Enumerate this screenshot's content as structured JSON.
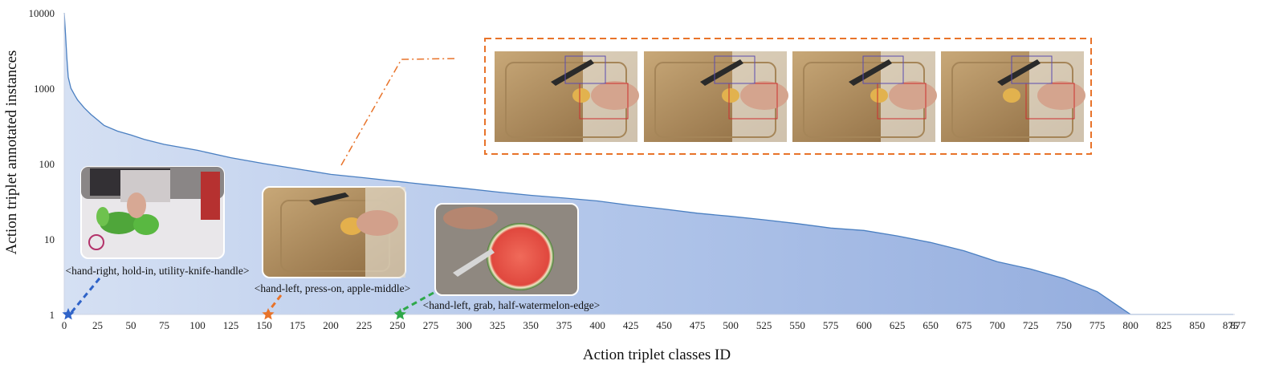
{
  "chart_data": {
    "type": "area",
    "title": "",
    "xlabel": "Action triplet classes ID",
    "ylabel": "Action triplet annotated instances",
    "yscale": "log",
    "ylim": [
      1,
      10000
    ],
    "xlim": [
      0,
      877
    ],
    "y_ticks": [
      "1",
      "10",
      "100",
      "1000",
      "10000"
    ],
    "x_ticks": [
      "0",
      "25",
      "50",
      "75",
      "100",
      "125",
      "150",
      "175",
      "200",
      "225",
      "250",
      "275",
      "300",
      "325",
      "350",
      "375",
      "400",
      "425",
      "450",
      "475",
      "500",
      "525",
      "550",
      "575",
      "600",
      "625",
      "650",
      "675",
      "700",
      "725",
      "750",
      "775",
      "800",
      "825",
      "850",
      "875",
      "877"
    ],
    "x": [
      0,
      1,
      2,
      3,
      5,
      8,
      10,
      15,
      20,
      25,
      30,
      40,
      50,
      60,
      75,
      100,
      125,
      150,
      175,
      200,
      225,
      250,
      275,
      300,
      325,
      350,
      375,
      400,
      425,
      450,
      475,
      500,
      525,
      550,
      575,
      600,
      625,
      650,
      675,
      700,
      725,
      750,
      775,
      800,
      825,
      850,
      875,
      877
    ],
    "y": [
      10000,
      5000,
      2500,
      1400,
      1000,
      800,
      700,
      550,
      450,
      380,
      320,
      270,
      240,
      210,
      180,
      150,
      120,
      100,
      85,
      72,
      65,
      58,
      52,
      47,
      42,
      38,
      35,
      32,
      28,
      25,
      22,
      20,
      18,
      16,
      14,
      13,
      11,
      9,
      7,
      5,
      4,
      3,
      2,
      1,
      1,
      1,
      1,
      1
    ],
    "color": "#4a7fc1",
    "annotations": [
      {
        "label": "<hand-right, hold-in, utility-knife-handle>",
        "x": 3,
        "y": 1,
        "marker_color": "#2f63c8"
      },
      {
        "label": "<hand-left, press-on, apple-middle>",
        "x": 153,
        "y": 1,
        "marker_color": "#e8732a"
      },
      {
        "label": "<hand-left, grab, half-watermelon-edge>",
        "x": 252,
        "y": 1,
        "marker_color": "#2fa84a"
      }
    ],
    "highlight": {
      "x": 210,
      "y": 75,
      "color": "#e8732a",
      "frames": 4
    }
  }
}
